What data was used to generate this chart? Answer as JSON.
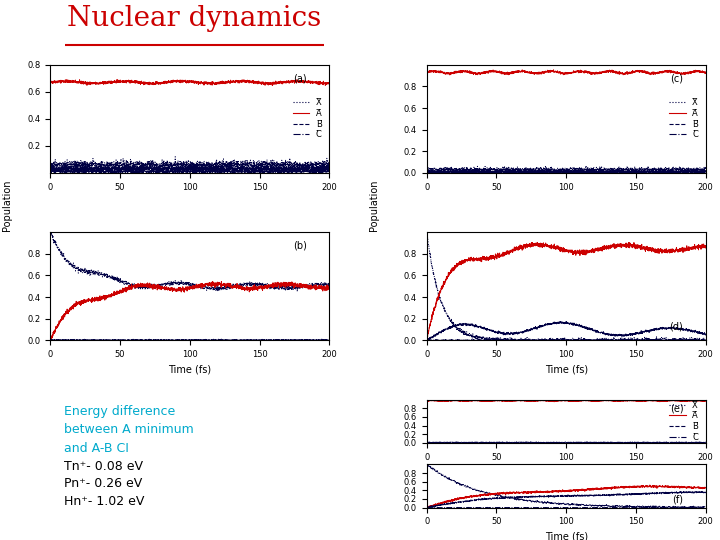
{
  "title": "Nuclear dynamics",
  "title_color": "#cc0000",
  "title_fontsize": 20,
  "title_underline": true,
  "background_color": "#ffffff",
  "text_cyan_lines": [
    "Energy difference",
    "between A minimum",
    "and A-B CI"
  ],
  "text_black_lines": [
    "Tn⁺- 0.08 eV",
    "Pn⁺- 0.26 eV",
    "Hn⁺- 1.02 eV"
  ],
  "cyan_color": "#00aacc",
  "black_color": "#000000",
  "subplot_labels": [
    "(a)",
    "(b)",
    "(c)",
    "(d)",
    "(e)",
    "(f)"
  ],
  "legend_labels": [
    "X̅",
    "A̅",
    "B̅",
    "C̅"
  ],
  "red_color": "#cc0000",
  "navy_color": "#000044",
  "xmax": 200
}
